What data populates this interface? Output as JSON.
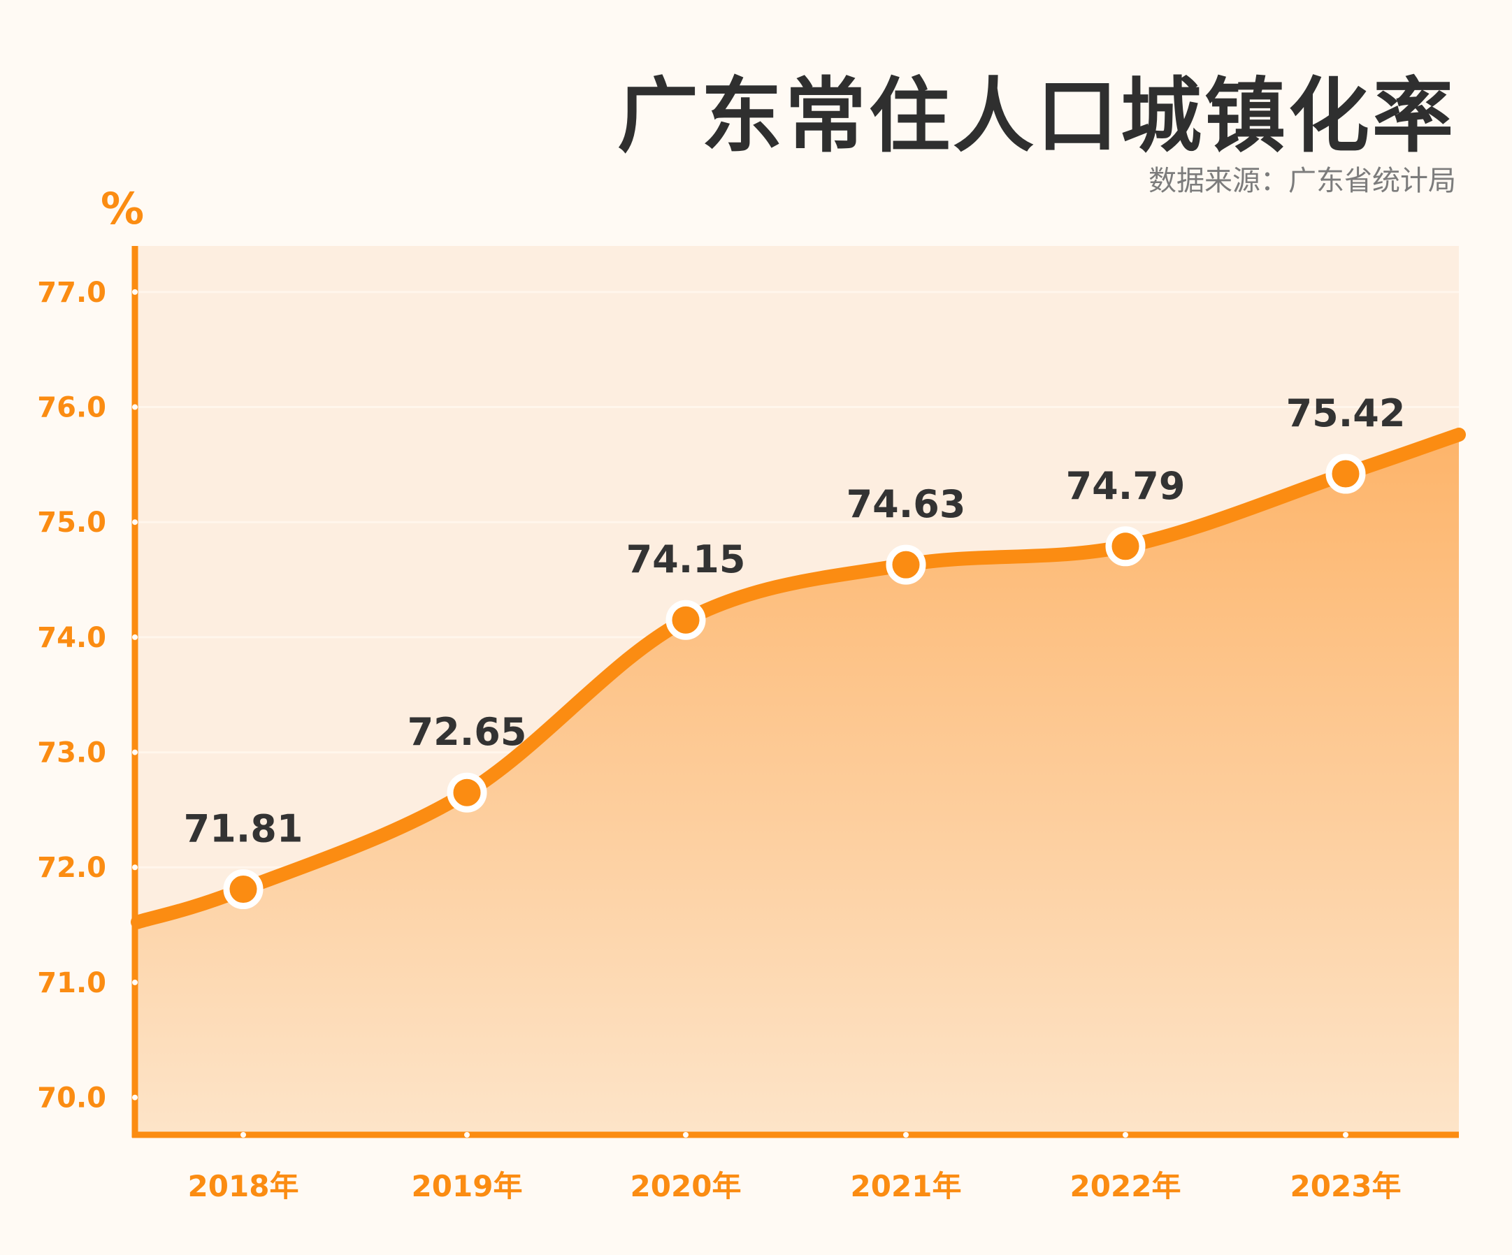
{
  "header": {
    "title": "广东常住人口城镇化率",
    "source": "数据来源：广东省统计局"
  },
  "chart_data": {
    "type": "area",
    "title": "广东常住人口城镇化率",
    "ylabel": "%",
    "xlabel": "",
    "categories": [
      "2018年",
      "2019年",
      "2020年",
      "2021年",
      "2022年",
      "2023年"
    ],
    "values": [
      71.81,
      72.65,
      74.15,
      74.63,
      74.79,
      75.42
    ],
    "data_labels": [
      "71.81",
      "72.65",
      "74.15",
      "74.63",
      "74.79",
      "75.42"
    ],
    "yticks": [
      "70.0",
      "71.0",
      "72.0",
      "73.0",
      "74.0",
      "75.0",
      "76.0",
      "77.0"
    ],
    "ytick_values": [
      70,
      71,
      72,
      73,
      74,
      75,
      76,
      77
    ],
    "ylim": [
      69.7,
      77.4
    ],
    "grid": true,
    "colors": {
      "line": "#fb8c12",
      "axis": "#fb8c12",
      "fill_top": "#fdb46a",
      "fill_bottom": "#fde4c8",
      "plot_bg": "#fdeee0",
      "marker_fill": "#fb8c12",
      "marker_stroke": "#ffffff",
      "data_label": "#333333"
    }
  }
}
